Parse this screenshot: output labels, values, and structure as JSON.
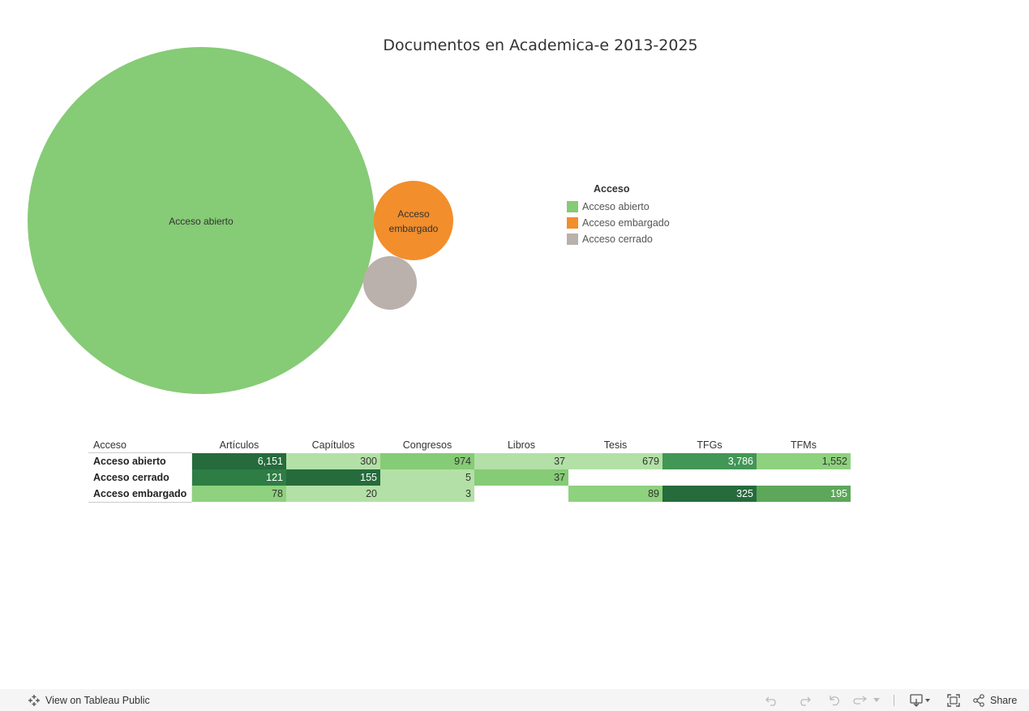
{
  "title": "Documentos en Academica-e 2013-2025",
  "colors": {
    "abierto": "#86cb76",
    "embargado": "#f28e2c",
    "cerrado": "#bab0ac"
  },
  "bubbles": [
    {
      "label": "Acceso abierto",
      "color": "#86cb76"
    },
    {
      "label": "Acceso embargado",
      "line1": "Acceso",
      "line2": "embargado",
      "color": "#f28e2c"
    },
    {
      "label": "",
      "color": "#bab0ac"
    }
  ],
  "legend": {
    "title": "Acceso",
    "items": [
      {
        "label": "Acceso abierto",
        "color": "#86cb76"
      },
      {
        "label": "Acceso embargado",
        "color": "#f28e2c"
      },
      {
        "label": "Acceso cerrado",
        "color": "#bab0ac"
      }
    ]
  },
  "chart_data": {
    "type": "table",
    "row_header": "Acceso",
    "columns": [
      "Artículos",
      "Capítulos",
      "Congresos",
      "Libros",
      "Tesis",
      "TFGs",
      "TFMs"
    ],
    "rows": [
      {
        "label": "Acceso abierto",
        "values": [
          "6,151",
          "300",
          "974",
          "37",
          "679",
          "3,786",
          "1,552"
        ]
      },
      {
        "label": "Acceso cerrado",
        "values": [
          "121",
          "155",
          "5",
          "37",
          "",
          "",
          ""
        ]
      },
      {
        "label": "Acceso embargado",
        "values": [
          "78",
          "20",
          "3",
          "",
          "89",
          "325",
          "195"
        ]
      }
    ],
    "cell_colors": [
      [
        "#256b3c",
        "#b3e0a6",
        "#86cb76",
        "#b3e0a6",
        "#b3e0a6",
        "#429656",
        "#8ed17e"
      ],
      [
        "#2d7d44",
        "#256b3c",
        "#b3e0a6",
        "#86cb76",
        "",
        "",
        ""
      ],
      [
        "#8ed17e",
        "#b3e0a6",
        "#b3e0a6",
        "",
        "#8ed17e",
        "#256b3c",
        "#5ca75a"
      ]
    ],
    "cell_text_colors": [
      [
        "#ffffff",
        "#333333",
        "#333333",
        "#333333",
        "#333333",
        "#ffffff",
        "#333333"
      ],
      [
        "#ffffff",
        "#ffffff",
        "#333333",
        "#333333",
        "",
        "",
        ""
      ],
      [
        "#333333",
        "#333333",
        "#333333",
        "",
        "#333333",
        "#ffffff",
        "#ffffff"
      ]
    ]
  },
  "toolbar": {
    "view_label": "View on Tableau Public",
    "share_label": "Share"
  }
}
